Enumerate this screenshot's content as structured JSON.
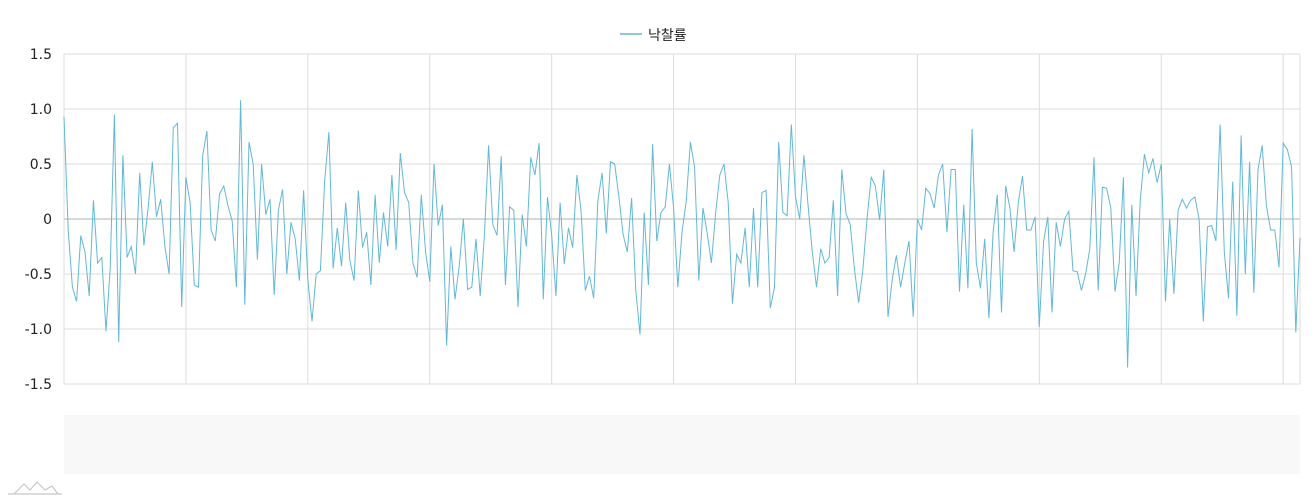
{
  "chart_data": {
    "type": "line",
    "title": "",
    "xlabel": "",
    "ylabel": "",
    "ylim": [
      -1.5,
      1.5
    ],
    "y_ticks": [
      "1.5",
      "1.0",
      "0.5",
      "0",
      "-0.5",
      "-1.0",
      "-1.5"
    ],
    "grid": true,
    "legend": "top-center",
    "series": [
      {
        "name": "낙찰률",
        "color": "#62b8d6",
        "values": [
          0.93,
          -0.1,
          -0.62,
          -0.75,
          -0.15,
          -0.3,
          -0.7,
          0.17,
          -0.4,
          -0.35,
          -1.02,
          -0.45,
          0.95,
          -1.12,
          0.58,
          -0.35,
          -0.25,
          -0.5,
          0.42,
          -0.24,
          0.1,
          0.52,
          0.02,
          0.18,
          -0.25,
          -0.5,
          0.83,
          0.87,
          -0.8,
          0.38,
          0.15,
          -0.6,
          -0.62,
          0.58,
          0.8,
          -0.1,
          -0.2,
          0.23,
          0.3,
          0.12,
          -0.02,
          -0.62,
          1.08,
          -0.78,
          0.7,
          0.5,
          -0.37,
          0.5,
          0.04,
          0.18,
          -0.69,
          0.08,
          0.27,
          -0.5,
          -0.03,
          -0.18,
          -0.56,
          0.26,
          -0.55,
          -0.93,
          -0.5,
          -0.47,
          0.35,
          0.79,
          -0.45,
          -0.08,
          -0.43,
          0.15,
          -0.38,
          -0.56,
          0.26,
          -0.26,
          -0.12,
          -0.6,
          0.22,
          -0.4,
          0.06,
          -0.25,
          0.4,
          -0.28,
          0.6,
          0.24,
          0.15,
          -0.4,
          -0.53,
          0.22,
          -0.3,
          -0.57,
          0.5,
          -0.06,
          0.13,
          -1.15,
          -0.25,
          -0.73,
          -0.43,
          0.0,
          -0.64,
          -0.62,
          -0.18,
          -0.7,
          -0.15,
          0.67,
          -0.05,
          -0.15,
          0.57,
          -0.6,
          0.11,
          0.08,
          -0.8,
          0.04,
          -0.25,
          0.56,
          0.4,
          0.69,
          -0.73,
          0.2,
          -0.15,
          -0.7,
          0.15,
          -0.41,
          -0.08,
          -0.26,
          0.4,
          0.07,
          -0.65,
          -0.52,
          -0.72,
          0.17,
          0.42,
          -0.13,
          0.52,
          0.5,
          0.2,
          -0.14,
          -0.3,
          0.19,
          -0.65,
          -1.05,
          0.06,
          -0.6,
          0.68,
          -0.2,
          0.06,
          0.11,
          0.5,
          0.1,
          -0.62,
          -0.12,
          0.16,
          0.7,
          0.47,
          -0.56,
          0.1,
          -0.13,
          -0.4,
          0.05,
          0.4,
          0.5,
          0.15,
          -0.77,
          -0.32,
          -0.4,
          -0.08,
          -0.62,
          0.1,
          -0.62,
          0.24,
          0.26,
          -0.81,
          -0.62,
          0.7,
          0.06,
          0.03,
          0.86,
          0.2,
          0.0,
          0.58,
          0.12,
          -0.3,
          -0.62,
          -0.27,
          -0.4,
          -0.35,
          0.17,
          -0.7,
          0.45,
          0.05,
          -0.05,
          -0.45,
          -0.76,
          -0.47,
          0.0,
          0.38,
          0.3,
          -0.01,
          0.45,
          -0.89,
          -0.55,
          -0.33,
          -0.62,
          -0.4,
          -0.2,
          -0.89,
          0.0,
          -0.1,
          0.28,
          0.23,
          0.1,
          0.4,
          0.5,
          -0.12,
          0.45,
          0.45,
          -0.66,
          0.13,
          -0.63,
          0.82,
          -0.4,
          -0.63,
          -0.18,
          -0.9,
          -0.12,
          0.22,
          -0.85,
          0.3,
          0.1,
          -0.3,
          0.15,
          0.39,
          -0.1,
          -0.1,
          0.02,
          -0.98,
          -0.2,
          0.02,
          -0.85,
          -0.03,
          -0.25,
          0.0,
          0.07,
          -0.47,
          -0.48,
          -0.65,
          -0.5,
          -0.27,
          0.56,
          -0.65,
          0.29,
          0.28,
          0.1,
          -0.66,
          -0.4,
          0.38,
          -1.35,
          0.13,
          -0.7,
          0.16,
          0.59,
          0.42,
          0.55,
          0.33,
          0.5,
          -0.75,
          0.0,
          -0.68,
          0.08,
          0.18,
          0.1,
          0.17,
          0.2,
          0.0,
          -0.93,
          -0.07,
          -0.06,
          -0.2,
          0.86,
          -0.3,
          -0.72,
          0.34,
          -0.88,
          0.76,
          -0.5,
          0.52,
          -0.67,
          0.45,
          0.67,
          0.12,
          -0.1,
          -0.1,
          -0.44,
          0.69,
          0.63,
          0.47,
          -1.03,
          -0.17
        ]
      }
    ]
  },
  "scrollbar": {
    "background": "#f8f8f8"
  },
  "logo": {
    "icon": "mountain-logo-icon"
  }
}
